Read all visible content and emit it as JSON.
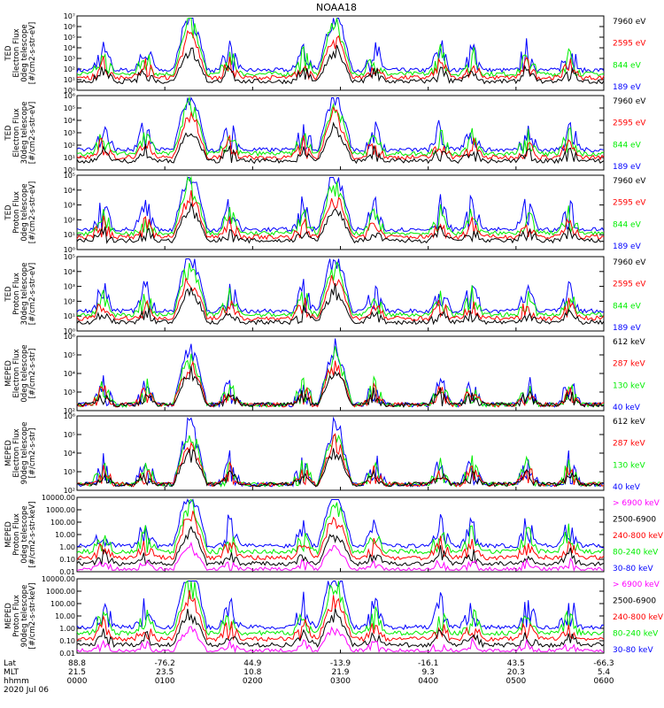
{
  "title": "NOAA18",
  "colors": {
    "black": "#000000",
    "red": "#ff0000",
    "green": "#00ee00",
    "blue": "#0000ff",
    "magenta": "#ff00ff"
  },
  "chart_data": [
    {
      "type": "scatter",
      "ylabel": [
        "TED",
        "Electron Flux",
        "0deg telescope",
        "[#/cm2-s-str-eV]"
      ],
      "ylim": [
        1,
        10000000
      ],
      "yscale": "log",
      "yticks": [
        "10⁰",
        "10¹",
        "10²",
        "10³",
        "10⁴",
        "10⁵",
        "10⁶",
        "10⁷"
      ],
      "legend": [
        {
          "label": "7960 eV",
          "color": "black"
        },
        {
          "label": "2595 eV",
          "color": "red"
        },
        {
          "label": "844 eV",
          "color": "green"
        },
        {
          "label": "189 eV",
          "color": "blue"
        }
      ]
    },
    {
      "type": "scatter",
      "ylabel": [
        "TED",
        "Electron Flux",
        "30deg telescope",
        "[#/cm2-s-str-eV]"
      ],
      "ylim": [
        1,
        1000000
      ],
      "yscale": "log",
      "yticks": [
        "10⁰",
        "10¹",
        "10²",
        "10³",
        "10⁴",
        "10⁵",
        "10⁶"
      ],
      "legend": [
        {
          "label": "7960 eV",
          "color": "black"
        },
        {
          "label": "2595 eV",
          "color": "red"
        },
        {
          "label": "844 eV",
          "color": "green"
        },
        {
          "label": "189 eV",
          "color": "blue"
        }
      ]
    },
    {
      "type": "scatter",
      "ylabel": [
        "TED",
        "Proton Flux",
        "0deg telescope",
        "[#/cm2-s-str-eV]"
      ],
      "ylim": [
        1,
        100000
      ],
      "yscale": "log",
      "yticks": [
        "10⁰",
        "10¹",
        "10²",
        "10³",
        "10⁴",
        "10⁵"
      ],
      "legend": [
        {
          "label": "7960 eV",
          "color": "black"
        },
        {
          "label": "2595 eV",
          "color": "red"
        },
        {
          "label": "844 eV",
          "color": "green"
        },
        {
          "label": "189 eV",
          "color": "blue"
        }
      ]
    },
    {
      "type": "scatter",
      "ylabel": [
        "TED",
        "Proton Flux",
        "30deg telescope",
        "[#/cm2-s-str-eV]"
      ],
      "ylim": [
        1,
        100000
      ],
      "yscale": "log",
      "yticks": [
        "10⁰",
        "10¹",
        "10²",
        "10³",
        "10⁴",
        "10⁵"
      ],
      "legend": [
        {
          "label": "7960 eV",
          "color": "black"
        },
        {
          "label": "2595 eV",
          "color": "red"
        },
        {
          "label": "844 eV",
          "color": "green"
        },
        {
          "label": "189 eV",
          "color": "blue"
        }
      ]
    },
    {
      "type": "scatter",
      "ylabel": [
        "MEPED",
        "Electron Flux",
        "0deg telescope",
        "[#/cm2-s-str]"
      ],
      "ylim": [
        100,
        1000000
      ],
      "yscale": "log",
      "yticks": [
        "10²",
        "10³",
        "10⁴",
        "10⁵",
        "10⁶"
      ],
      "legend": [
        {
          "label": "612 keV",
          "color": "black"
        },
        {
          "label": "287 keV",
          "color": "red"
        },
        {
          "label": "130 keV",
          "color": "green"
        },
        {
          "label": "40 keV",
          "color": "blue"
        }
      ]
    },
    {
      "type": "scatter",
      "ylabel": [
        "MEPED",
        "Electron Flux",
        "90deg telescope",
        "[#/cm2-s-str]"
      ],
      "ylim": [
        100,
        1000000
      ],
      "yscale": "log",
      "yticks": [
        "10²",
        "10³",
        "10⁴",
        "10⁵",
        "10⁶"
      ],
      "legend": [
        {
          "label": "612 keV",
          "color": "black"
        },
        {
          "label": "287 keV",
          "color": "red"
        },
        {
          "label": "130 keV",
          "color": "green"
        },
        {
          "label": "40 keV",
          "color": "blue"
        }
      ]
    },
    {
      "type": "scatter",
      "ylabel": [
        "MEPED",
        "Proton Flux",
        "0deg telescope",
        "[#/cm2-s-str-keV]"
      ],
      "ylim": [
        0.01,
        10000
      ],
      "yscale": "log",
      "yticks": [
        "0.01",
        "0.10",
        "1.00",
        "10.00",
        "100.00",
        "1000.00",
        "10000.00"
      ],
      "legend": [
        {
          "label": "> 6900 keV",
          "color": "magenta"
        },
        {
          "label": "2500-6900",
          "color": "black"
        },
        {
          "label": "240-800 keV",
          "color": "red"
        },
        {
          "label": "80-240 keV",
          "color": "green"
        },
        {
          "label": "30-80 keV",
          "color": "blue"
        }
      ]
    },
    {
      "type": "scatter",
      "ylabel": [
        "MEPED",
        "Proton Flux",
        "90deg telescope",
        "[#/cm2-s-str-keV]"
      ],
      "ylim": [
        0.01,
        10000
      ],
      "yscale": "log",
      "yticks": [
        "0.01",
        "0.10",
        "1.00",
        "10.00",
        "100.00",
        "1000.00",
        "10000.00"
      ],
      "legend": [
        {
          "label": "> 6900 keV",
          "color": "magenta"
        },
        {
          "label": "2500-6900",
          "color": "black"
        },
        {
          "label": "240-800 keV",
          "color": "red"
        },
        {
          "label": "80-240 keV",
          "color": "green"
        },
        {
          "label": "30-80 keV",
          "color": "blue"
        }
      ]
    }
  ],
  "x_axis": {
    "row_labels": [
      "Lat",
      "MLT",
      "hhmm",
      "2020 Jul 06"
    ],
    "ticks": [
      {
        "lat": "88.8",
        "mlt": "21.5",
        "hhmm": "0000"
      },
      {
        "lat": "-76.2",
        "mlt": "23.5",
        "hhmm": "0100"
      },
      {
        "lat": "44.9",
        "mlt": "10.8",
        "hhmm": "0200"
      },
      {
        "lat": "-13.9",
        "mlt": "21.9",
        "hhmm": "0300"
      },
      {
        "lat": "-16.1",
        "mlt": "9.3",
        "hhmm": "0400"
      },
      {
        "lat": "43.5",
        "mlt": "20.3",
        "hhmm": "0500"
      },
      {
        "lat": "-66.3",
        "mlt": "5.4",
        "hhmm": "0600"
      }
    ],
    "range_hours": [
      0,
      6
    ]
  }
}
